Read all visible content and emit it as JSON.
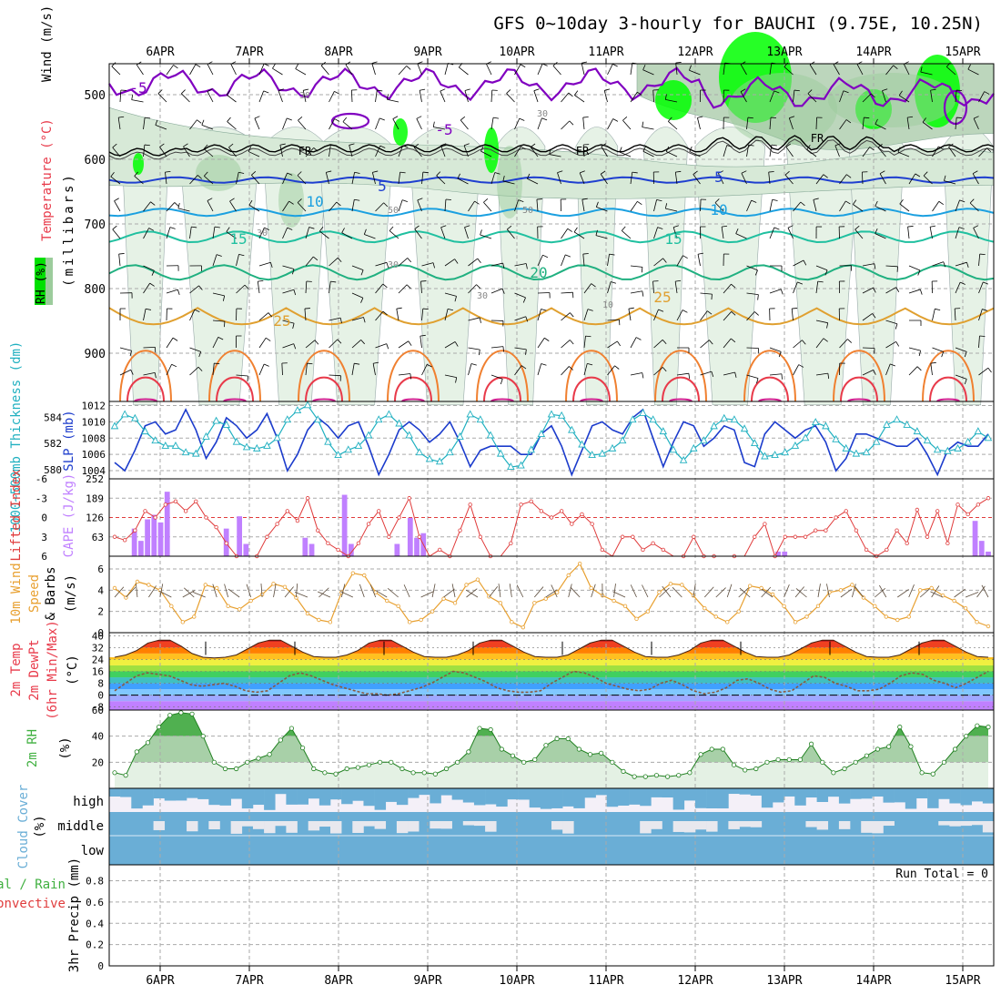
{
  "title": "GFS 0~10day 3-hourly for BAUCHI (9.75E, 10.25N)",
  "dates": [
    "6APR",
    "7APR",
    "8APR",
    "9APR",
    "10APR",
    "11APR",
    "12APR",
    "13APR",
    "14APR",
    "15APR"
  ],
  "colors": {
    "rh_green": "#00ff00",
    "rh_light": "#e6f2e6",
    "wind_purple": "#8000c0",
    "thickness": "#20b0c0",
    "slp": "#1c3ccc",
    "lifted": "#e03c3c",
    "cape": "#c080ff",
    "wind_speed": "#e8a030",
    "rh2m": "#40b040",
    "cloud": "#6aaed6"
  },
  "chart_data": [
    {
      "id": "upper-air",
      "type": "contour",
      "ylabel_wind": "Wind (m/s)",
      "ylabel_temp": "Temperature (°C)",
      "ylabel_rh": "RH (%)",
      "ylabel_axis": "(millibars)",
      "y_ticks": [
        500,
        600,
        700,
        800,
        900
      ],
      "ylim": [
        1000,
        450
      ],
      "contour_labels": [
        "-5",
        "FR",
        "5",
        "10",
        "15",
        "20",
        "25"
      ],
      "rh_labels": [
        "30",
        "50",
        "10"
      ],
      "freezing_level_label": "FR"
    },
    {
      "id": "slp-thickness",
      "type": "line",
      "ylabel_left": "1000~500mb Thickness (dm)",
      "ylabel_right": "SLP (mb)",
      "left_ticks": [
        580,
        582,
        584
      ],
      "right_ticks": [
        1004,
        1006,
        1008,
        1010,
        1012
      ],
      "ylim_right": [
        1003,
        1012.5
      ],
      "ylim_left": [
        579.3,
        585.2
      ],
      "series": [
        {
          "name": "SLP",
          "values": [
            1005,
            1004,
            1006.5,
            1009.5,
            1010,
            1008.5,
            1009,
            1011.5,
            1009,
            1005.5,
            1007.5,
            1010.5,
            1009.5,
            1008,
            1009,
            1011,
            1008,
            1004,
            1006,
            1009,
            1010.5,
            1009.5,
            1008,
            1009.5,
            1010,
            1007,
            1003.5,
            1006,
            1009,
            1010,
            1009,
            1007.5,
            1008.5,
            1010,
            1007.5,
            1004.5,
            1006.5,
            1007,
            1007,
            1007,
            1006,
            1006,
            1008.5,
            1009.5,
            1007,
            1003.5,
            1006.5,
            1009.5,
            1010,
            1009,
            1008.5,
            1010.5,
            1011.5,
            1008,
            1004.5,
            1007.5,
            1010,
            1009.5,
            1007,
            1008,
            1009.5,
            1009,
            1005,
            1004.5,
            1008.5,
            1010,
            1009,
            1008,
            1009,
            1009.5,
            1007.5,
            1004,
            1005.5,
            1008.5,
            1008.5,
            1008,
            1007.5,
            1007,
            1007,
            1008,
            1006,
            1003.5,
            1006.5,
            1007.5,
            1007,
            1007,
            1008.5
          ]
        },
        {
          "name": "Thickness",
          "values": [
            583.3,
            584.2,
            583.9,
            582.9,
            582.2,
            581.8,
            581.8,
            581.3,
            581.2,
            582.5,
            583.7,
            583.4,
            582.1,
            581.7,
            581.6,
            581.8,
            582.4,
            583.8,
            584.5,
            584.9,
            583.8,
            582.1,
            581.1,
            581.5,
            581.8,
            582.6,
            583.8,
            584.2,
            583.5,
            582.6,
            581.3,
            580.8,
            580.6,
            581.3,
            582.5,
            584.2,
            583.8,
            582.6,
            581.2,
            580.2,
            580.3,
            581.5,
            582.7,
            584.2,
            584.1,
            583,
            581.9,
            581.1,
            581.2,
            581.6,
            582.2,
            583.8,
            584.3,
            583.8,
            582.9,
            581.5,
            580.7,
            581.6,
            582.2,
            583.3,
            583.9,
            583.8,
            583.1,
            582,
            581,
            581.1,
            581.3,
            581.8,
            582.4,
            583.6,
            583.3,
            582.3,
            581.6,
            581.2,
            581.3,
            582.1,
            583.4,
            583.8,
            583.4,
            582.9,
            582.2,
            581.5,
            581.4,
            581.6,
            582.1,
            582.9,
            582.4
          ]
        }
      ]
    },
    {
      "id": "lifted-cape",
      "type": "line-bar",
      "ylabel_left": "Lifted Index",
      "ylabel_right": "CAPE (J/kg)",
      "left_ticks": [
        "-6",
        "-3",
        "0",
        "3",
        "6"
      ],
      "right_ticks": [
        63,
        126,
        189,
        252
      ],
      "cape_ylim": [
        0,
        252
      ],
      "lifted_ylim": [
        6,
        -6
      ],
      "series": [
        {
          "name": "CAPE",
          "values": [
            0,
            0,
            0,
            90,
            50,
            120,
            135,
            110,
            210,
            0,
            0,
            0,
            0,
            0,
            0,
            0,
            0,
            90,
            0,
            130,
            40,
            0,
            0,
            0,
            0,
            0,
            0,
            0,
            0,
            60,
            40,
            0,
            0,
            0,
            0,
            200,
            40,
            0,
            0,
            0,
            0,
            0,
            0,
            40,
            0,
            125,
            60,
            75,
            0,
            0,
            0,
            0,
            0,
            0,
            0,
            0,
            0,
            0,
            0,
            0,
            0,
            0,
            0,
            0,
            0,
            0,
            0,
            0,
            0,
            0,
            0,
            0,
            0,
            0,
            0,
            0,
            0,
            0,
            0,
            0,
            0,
            0,
            0,
            0,
            0,
            0,
            0,
            0,
            0,
            0,
            0,
            0,
            0,
            0,
            0,
            0,
            0,
            0,
            0,
            0,
            0,
            15,
            15,
            0,
            0,
            0,
            0,
            0,
            0,
            0,
            0,
            0,
            0,
            0,
            0,
            0,
            0,
            0,
            0,
            0,
            0,
            0,
            0,
            0,
            0,
            0,
            0,
            0,
            0,
            0,
            0,
            115,
            50,
            15
          ]
        },
        {
          "name": "Lifted Index",
          "values": [
            3,
            3.5,
            2,
            -1,
            0,
            -2,
            -2.5,
            -1,
            -2.5,
            0,
            1.5,
            4,
            6,
            7,
            6,
            3,
            1,
            -1,
            0.5,
            -3,
            2,
            4,
            5,
            6,
            4,
            1,
            -1,
            3,
            0,
            -3,
            3,
            7,
            5,
            6,
            2,
            -2,
            3,
            6,
            7,
            4,
            -2,
            -2.5,
            -1,
            0,
            -1,
            1,
            -0.5,
            1,
            5,
            7,
            3,
            3,
            5,
            4,
            5,
            7,
            6,
            3,
            6,
            6,
            7,
            6,
            7,
            3,
            1,
            6,
            3,
            3,
            3,
            2,
            2,
            0,
            -1,
            2,
            5,
            6,
            5,
            2,
            4,
            -1.2,
            3,
            -1,
            4,
            -2,
            -0.5,
            -2,
            -3
          ]
        }
      ]
    },
    {
      "id": "wind10m",
      "type": "line",
      "ylabel": "10m Wind Speed & Barbs (m/s)",
      "ticks": [
        0,
        2,
        4,
        6
      ],
      "ylim": [
        0,
        7.2
      ],
      "series": [
        {
          "name": "Speed",
          "values": [
            4.2,
            3.3,
            4.8,
            4.5,
            4,
            2.5,
            1,
            1.5,
            4.5,
            4.2,
            2.5,
            2.2,
            3,
            3.6,
            4.6,
            4.3,
            3.3,
            1.8,
            1.2,
            1,
            3.8,
            5.6,
            5.4,
            3.8,
            3,
            2.5,
            1,
            1.2,
            2,
            3.2,
            2.8,
            4.5,
            5,
            3.4,
            2.8,
            1,
            0.5,
            2.8,
            3.2,
            3.8,
            5.4,
            6.5,
            4.2,
            3.5,
            3,
            2.5,
            1.3,
            2,
            3.8,
            4.6,
            4.5,
            3.5,
            2.3,
            1.5,
            1,
            2,
            4.4,
            4.2,
            3.6,
            2.5,
            1,
            1.5,
            2.5,
            3.8,
            4,
            4.5,
            3.3,
            2.5,
            1.5,
            1.2,
            1.5,
            4,
            4.2,
            3.5,
            3,
            2.3,
            1,
            0.6
          ]
        }
      ]
    },
    {
      "id": "temp2m",
      "type": "area",
      "ylabel": "2m Temp 2m DewPt (6hr Min/Max) (°C)",
      "ticks": [
        -8,
        0,
        8,
        16,
        24,
        32,
        40
      ],
      "ylim": [
        -10,
        42
      ],
      "series": [
        {
          "name": "Temp",
          "values": [
            25.5,
            27,
            30,
            35,
            37,
            37,
            33,
            28,
            25.5,
            25,
            25.5,
            27,
            31,
            35,
            37,
            37,
            33,
            29,
            26,
            25.5,
            25.5,
            27,
            30,
            35,
            37,
            37,
            33,
            29,
            26,
            25.5,
            25.5,
            27,
            30,
            35,
            37,
            37,
            33,
            29,
            26,
            25.5,
            25.5,
            27,
            31,
            35,
            37,
            37,
            33,
            29,
            26,
            25.5,
            25.5,
            27,
            30,
            35,
            37,
            37,
            33,
            29,
            26,
            25.5,
            25.5,
            27,
            31,
            35,
            37,
            37,
            33,
            29,
            26,
            25.5,
            25.5,
            27,
            31,
            35,
            37,
            37,
            33,
            29,
            26,
            25.5
          ]
        },
        {
          "name": "DewPt",
          "values": [
            3,
            8,
            13,
            15,
            14,
            13,
            10,
            7,
            6,
            7,
            8,
            6,
            3,
            2,
            3,
            8,
            13,
            15,
            13,
            10,
            7,
            5,
            3,
            1,
            1,
            0,
            1,
            3,
            5,
            8,
            12,
            16,
            15,
            12,
            9,
            5,
            3,
            2,
            2,
            3,
            8,
            12,
            16,
            15,
            12,
            8,
            6,
            4,
            3,
            4,
            8,
            10,
            7,
            3,
            1,
            2,
            5,
            10,
            11,
            8,
            4,
            2,
            3,
            8,
            13,
            12,
            8,
            6,
            3,
            3,
            4,
            8,
            13,
            15,
            14,
            10,
            8,
            5,
            8,
            12,
            16
          ]
        }
      ]
    },
    {
      "id": "rh2m",
      "type": "area",
      "ylabel": "2m RH (%)",
      "ticks": [
        20,
        40,
        60
      ],
      "ylim": [
        0,
        60
      ],
      "series": [
        {
          "name": "RH",
          "values": [
            12,
            10,
            28,
            35,
            47,
            56,
            58,
            57,
            40,
            20,
            15,
            15,
            20,
            23,
            26,
            37,
            46,
            31,
            15,
            12,
            11,
            15,
            16,
            18,
            20,
            20,
            15,
            12,
            12,
            11,
            15,
            20,
            28,
            46,
            45,
            30,
            25,
            20,
            22,
            33,
            38,
            38,
            30,
            26,
            27,
            20,
            13,
            9,
            9,
            10,
            9,
            10,
            12,
            26,
            30,
            30,
            18,
            14,
            15,
            20,
            22,
            22,
            22,
            34,
            20,
            12,
            15,
            20,
            25,
            30,
            32,
            47,
            32,
            12,
            11,
            20,
            30,
            40,
            48,
            47
          ]
        }
      ]
    },
    {
      "id": "cloud",
      "type": "heatmap",
      "ylabel": "Cloud Cover (%)",
      "levels": [
        "high",
        "middle",
        "low"
      ]
    },
    {
      "id": "precip",
      "type": "bar",
      "ylabel_left": "Total / Rain",
      "ylabel_left2": "Convective",
      "ylabel": "3hr Precip (mm)",
      "ticks": [
        "0",
        "0.2",
        "0.4",
        "0.6",
        "0.8"
      ],
      "ylim": [
        0,
        0.95
      ],
      "run_total_label": "Run Total = 0",
      "values": []
    }
  ]
}
